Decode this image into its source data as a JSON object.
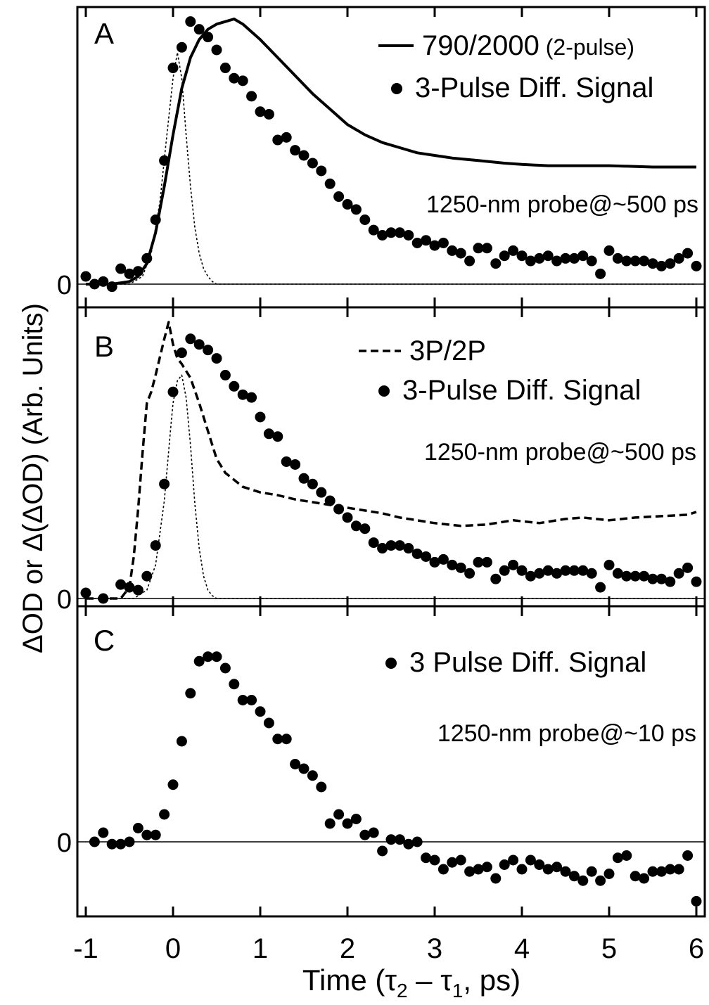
{
  "figure": {
    "ylabel_delta": "Δ",
    "ylabel_od": "OD or ",
    "ylabel_delta2": "Δ(",
    "ylabel_delta3": "Δ",
    "ylabel_rest": "OD)  (Arb. Units)",
    "xlabel_pre": "Time (",
    "xlabel_tau": "τ",
    "xlabel_sub2": "2",
    "xlabel_minus": " – ",
    "xlabel_tau2": "τ",
    "xlabel_sub1": "1",
    "xlabel_post": ", ps)"
  },
  "chart_data": [
    {
      "type": "line",
      "panel_label": "A",
      "xlim": [
        -1.1,
        6.1
      ],
      "ylim": [
        -0.08,
        1.05
      ],
      "xticks": [
        -1,
        0,
        1,
        2,
        3,
        4,
        5,
        6
      ],
      "zero_label": "0",
      "annotation": "1250-nm probe@~500 ps",
      "legend": [
        {
          "mark": "line",
          "label": "790/2000",
          "label_small": " (2-pulse)"
        },
        {
          "mark": "dot",
          "label": "3-Pulse Diff. Signal"
        }
      ],
      "series": [
        {
          "name": "790/2000 (2-pulse)",
          "style": "solid",
          "x": [
            -1.0,
            -0.7,
            -0.5,
            -0.4,
            -0.3,
            -0.2,
            -0.1,
            0.0,
            0.1,
            0.2,
            0.3,
            0.4,
            0.5,
            0.6,
            0.7,
            0.8,
            0.9,
            1.0,
            1.2,
            1.4,
            1.6,
            1.8,
            2.0,
            2.2,
            2.4,
            2.6,
            2.8,
            3.0,
            3.2,
            3.5,
            3.8,
            4.0,
            4.3,
            4.6,
            5.0,
            5.5,
            6.0
          ],
          "y": [
            0.0,
            0.0,
            0.01,
            0.03,
            0.08,
            0.2,
            0.38,
            0.58,
            0.76,
            0.88,
            0.95,
            0.99,
            1.01,
            1.02,
            1.03,
            1.01,
            0.98,
            0.95,
            0.88,
            0.81,
            0.74,
            0.68,
            0.62,
            0.58,
            0.55,
            0.53,
            0.51,
            0.5,
            0.49,
            0.48,
            0.47,
            0.465,
            0.46,
            0.46,
            0.46,
            0.455,
            0.455
          ]
        },
        {
          "name": "pulse",
          "style": "dotted",
          "x": [
            -1.0,
            -0.5,
            -0.35,
            -0.25,
            -0.15,
            -0.08,
            0.0,
            0.05,
            0.1,
            0.15,
            0.2,
            0.25,
            0.3,
            0.35,
            0.4,
            0.45,
            0.5,
            0.6,
            1.0,
            6.0
          ],
          "y": [
            0.0,
            0.0,
            0.03,
            0.12,
            0.32,
            0.55,
            0.8,
            0.9,
            0.8,
            0.58,
            0.38,
            0.22,
            0.12,
            0.06,
            0.03,
            0.01,
            0.0,
            0.0,
            0.0,
            0.0
          ]
        },
        {
          "name": "3-Pulse Diff. Signal",
          "style": "dots",
          "x": [
            -1.0,
            -0.9,
            -0.8,
            -0.7,
            -0.6,
            -0.5,
            -0.4,
            -0.3,
            -0.2,
            -0.1,
            0.0,
            0.1,
            0.2,
            0.3,
            0.4,
            0.5,
            0.6,
            0.7,
            0.8,
            0.9,
            1.0,
            1.1,
            1.2,
            1.3,
            1.4,
            1.5,
            1.6,
            1.7,
            1.8,
            1.9,
            2.0,
            2.1,
            2.2,
            2.3,
            2.4,
            2.5,
            2.6,
            2.7,
            2.8,
            2.9,
            3.0,
            3.1,
            3.2,
            3.3,
            3.4,
            3.5,
            3.6,
            3.7,
            3.8,
            3.9,
            4.0,
            4.1,
            4.2,
            4.3,
            4.4,
            4.5,
            4.6,
            4.7,
            4.8,
            4.9,
            5.0,
            5.1,
            5.2,
            5.3,
            5.4,
            5.5,
            5.6,
            5.7,
            5.8,
            5.9,
            6.0
          ],
          "y": [
            0.03,
            0.0,
            0.01,
            -0.01,
            0.06,
            0.04,
            0.05,
            0.1,
            0.25,
            0.48,
            0.84,
            0.92,
            1.02,
            0.99,
            0.96,
            0.91,
            0.84,
            0.8,
            0.79,
            0.73,
            0.67,
            0.66,
            0.56,
            0.57,
            0.52,
            0.5,
            0.47,
            0.44,
            0.39,
            0.34,
            0.31,
            0.29,
            0.25,
            0.21,
            0.19,
            0.2,
            0.2,
            0.19,
            0.16,
            0.17,
            0.15,
            0.16,
            0.13,
            0.12,
            0.09,
            0.14,
            0.14,
            0.08,
            0.11,
            0.13,
            0.11,
            0.09,
            0.1,
            0.11,
            0.09,
            0.1,
            0.1,
            0.11,
            0.09,
            0.04,
            0.13,
            0.1,
            0.09,
            0.09,
            0.09,
            0.08,
            0.07,
            0.08,
            0.1,
            0.12,
            0.07
          ]
        }
      ]
    },
    {
      "type": "line",
      "panel_label": "B",
      "xlim": [
        -1.1,
        6.1
      ],
      "ylim": [
        -0.02,
        1.05
      ],
      "xticks": [
        -1,
        0,
        1,
        2,
        3,
        4,
        5,
        6
      ],
      "zero_label": "0",
      "annotation": "1250-nm probe@~500 ps",
      "legend": [
        {
          "mark": "dash",
          "label": "3P/2P"
        },
        {
          "mark": "dot",
          "label": "3-Pulse Diff. Signal"
        }
      ],
      "series": [
        {
          "name": "3P/2P",
          "style": "dashed",
          "x": [
            -1.0,
            -0.6,
            -0.5,
            -0.45,
            -0.4,
            -0.35,
            -0.3,
            -0.25,
            -0.2,
            -0.1,
            -0.05,
            0.0,
            0.05,
            0.1,
            0.2,
            0.3,
            0.4,
            0.5,
            0.6,
            0.8,
            1.0,
            1.2,
            1.4,
            1.6,
            1.8,
            2.0,
            2.2,
            2.4,
            2.6,
            2.8,
            3.0,
            3.3,
            3.6,
            3.9,
            4.2,
            4.5,
            4.7,
            5.0,
            5.3,
            5.6,
            5.9,
            6.0
          ],
          "y": [
            0.0,
            0.0,
            0.04,
            0.15,
            0.32,
            0.52,
            0.7,
            0.74,
            0.8,
            0.93,
            0.99,
            0.91,
            0.86,
            0.84,
            0.79,
            0.7,
            0.6,
            0.5,
            0.45,
            0.4,
            0.38,
            0.37,
            0.355,
            0.345,
            0.335,
            0.325,
            0.315,
            0.305,
            0.29,
            0.28,
            0.27,
            0.26,
            0.265,
            0.28,
            0.27,
            0.285,
            0.29,
            0.28,
            0.29,
            0.295,
            0.3,
            0.31
          ]
        },
        {
          "name": "pulse",
          "style": "dotted",
          "x": [
            -1.0,
            -0.45,
            -0.3,
            -0.2,
            -0.1,
            -0.03,
            0.0,
            0.05,
            0.1,
            0.15,
            0.2,
            0.25,
            0.3,
            0.35,
            0.4,
            0.45,
            0.5,
            0.6,
            1.0,
            6.0
          ],
          "y": [
            0.0,
            0.0,
            0.03,
            0.12,
            0.35,
            0.6,
            0.7,
            0.78,
            0.8,
            0.72,
            0.55,
            0.34,
            0.18,
            0.08,
            0.03,
            0.01,
            0.0,
            0.0,
            0.0,
            0.0
          ]
        },
        {
          "name": "3-Pulse Diff. Signal",
          "style": "dots",
          "x": [
            -1.0,
            -0.8,
            -0.6,
            -0.5,
            -0.4,
            -0.3,
            -0.2,
            -0.1,
            0.0,
            0.1,
            0.2,
            0.3,
            0.4,
            0.5,
            0.6,
            0.7,
            0.8,
            0.9,
            1.0,
            1.1,
            1.2,
            1.3,
            1.4,
            1.5,
            1.6,
            1.7,
            1.8,
            1.9,
            2.0,
            2.1,
            2.2,
            2.3,
            2.4,
            2.5,
            2.6,
            2.7,
            2.8,
            2.9,
            3.0,
            3.1,
            3.2,
            3.3,
            3.4,
            3.5,
            3.6,
            3.7,
            3.8,
            3.9,
            4.0,
            4.1,
            4.2,
            4.3,
            4.4,
            4.5,
            4.6,
            4.7,
            4.8,
            4.9,
            5.0,
            5.1,
            5.2,
            5.3,
            5.4,
            5.5,
            5.6,
            5.7,
            5.8,
            5.9,
            6.0
          ],
          "y": [
            0.02,
            0.0,
            0.05,
            0.04,
            0.03,
            0.08,
            0.19,
            0.41,
            0.74,
            0.88,
            0.93,
            0.91,
            0.89,
            0.86,
            0.8,
            0.76,
            0.73,
            0.72,
            0.65,
            0.59,
            0.58,
            0.49,
            0.48,
            0.43,
            0.41,
            0.38,
            0.35,
            0.32,
            0.29,
            0.26,
            0.25,
            0.2,
            0.18,
            0.19,
            0.19,
            0.18,
            0.16,
            0.15,
            0.13,
            0.14,
            0.12,
            0.11,
            0.09,
            0.13,
            0.13,
            0.07,
            0.1,
            0.12,
            0.1,
            0.08,
            0.09,
            0.1,
            0.09,
            0.1,
            0.1,
            0.1,
            0.09,
            0.04,
            0.12,
            0.09,
            0.08,
            0.08,
            0.08,
            0.07,
            0.07,
            0.06,
            0.09,
            0.11,
            0.06
          ]
        }
      ]
    },
    {
      "type": "scatter",
      "panel_label": "C",
      "xlim": [
        -1.1,
        6.1
      ],
      "ylim": [
        -0.3,
        1.0
      ],
      "xticks": [
        -1,
        0,
        1,
        2,
        3,
        4,
        5,
        6
      ],
      "xtick_labels": [
        "-1",
        "0",
        "1",
        "2",
        "3",
        "4",
        "5",
        "6"
      ],
      "zero_label": "0",
      "annotation": "1250-nm probe@~10 ps",
      "legend": [
        {
          "mark": "dot",
          "label": "3 Pulse Diff. Signal"
        }
      ],
      "series": [
        {
          "name": "3 Pulse Diff. Signal",
          "style": "dots",
          "x": [
            -0.9,
            -0.8,
            -0.7,
            -0.6,
            -0.5,
            -0.4,
            -0.3,
            -0.2,
            -0.1,
            0.0,
            0.1,
            0.2,
            0.3,
            0.4,
            0.5,
            0.6,
            0.7,
            0.8,
            0.9,
            1.0,
            1.1,
            1.2,
            1.3,
            1.4,
            1.5,
            1.6,
            1.7,
            1.8,
            1.9,
            2.0,
            2.1,
            2.2,
            2.3,
            2.4,
            2.5,
            2.6,
            2.7,
            2.8,
            2.9,
            3.0,
            3.1,
            3.2,
            3.3,
            3.4,
            3.5,
            3.6,
            3.7,
            3.8,
            3.9,
            4.0,
            4.1,
            4.2,
            4.3,
            4.4,
            4.5,
            4.6,
            4.7,
            4.8,
            4.9,
            5.0,
            5.1,
            5.2,
            5.3,
            5.4,
            5.5,
            5.6,
            5.7,
            5.8,
            5.9,
            6.0
          ],
          "y": [
            0.0,
            0.04,
            -0.01,
            -0.01,
            0.0,
            0.06,
            0.03,
            0.03,
            0.12,
            0.25,
            0.44,
            0.65,
            0.79,
            0.81,
            0.81,
            0.76,
            0.69,
            0.62,
            0.62,
            0.57,
            0.52,
            0.45,
            0.45,
            0.34,
            0.32,
            0.29,
            0.24,
            0.08,
            0.12,
            0.08,
            0.1,
            0.03,
            0.04,
            -0.04,
            0.01,
            0.01,
            -0.01,
            0.0,
            -0.07,
            -0.08,
            -0.12,
            -0.09,
            -0.08,
            -0.13,
            -0.12,
            -0.11,
            -0.16,
            -0.1,
            -0.08,
            -0.12,
            -0.08,
            -0.1,
            -0.12,
            -0.11,
            -0.13,
            -0.15,
            -0.17,
            -0.13,
            -0.17,
            -0.14,
            -0.07,
            -0.06,
            -0.15,
            -0.16,
            -0.13,
            -0.13,
            -0.12,
            -0.12,
            -0.06,
            -0.26
          ]
        }
      ]
    }
  ]
}
